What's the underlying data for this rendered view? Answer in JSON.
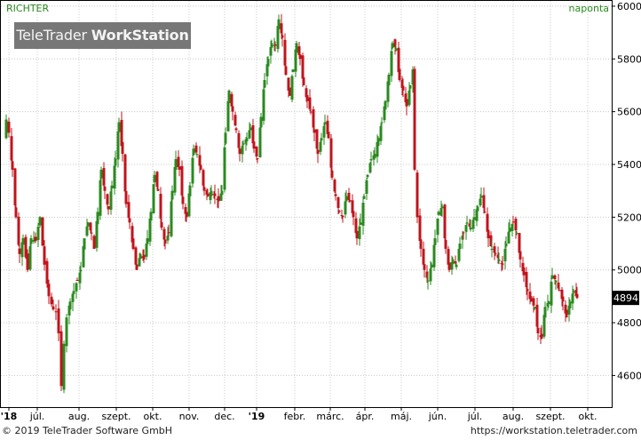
{
  "header": {
    "symbol": "RICHTER",
    "period": "naponta"
  },
  "watermark": {
    "brand": "TeleTrader",
    "product": "WorkStation"
  },
  "footer": {
    "copyright": "© 2019 TeleTrader Software GmbH",
    "url": "https://workstation.teletrader.com"
  },
  "chart_data": {
    "type": "candlestick",
    "series_name": "RICHTER",
    "interval": "naponta",
    "last_value": 4894,
    "ylim": [
      4480,
      6020
    ],
    "y_ticks": [
      4600,
      4800,
      5000,
      5200,
      5400,
      5600,
      5800,
      6000
    ],
    "x_ticks": [
      "'18",
      "júl.",
      "aug.",
      "szept.",
      "okt.",
      "nov.",
      "dec.",
      "'19",
      "febr.",
      "márc.",
      "ápr.",
      "máj.",
      "jún.",
      "júl.",
      "aug.",
      "szept.",
      "okt."
    ],
    "grid": true,
    "colors": {
      "up": "#2a8a1f",
      "down": "#c0141c",
      "grid": "#c8c8c8",
      "axis": "#000000",
      "last_badge": "#000000"
    },
    "price_path": [
      [
        0,
        5500
      ],
      [
        2,
        5570
      ],
      [
        5,
        5520
      ],
      [
        9,
        5380
      ],
      [
        13,
        5200
      ],
      [
        17,
        5060
      ],
      [
        21,
        5120
      ],
      [
        26,
        5000
      ],
      [
        30,
        5120
      ],
      [
        35,
        5110
      ],
      [
        40,
        5200
      ],
      [
        45,
        5020
      ],
      [
        50,
        4900
      ],
      [
        55,
        4850
      ],
      [
        58,
        4840
      ],
      [
        61,
        4760
      ],
      [
        64,
        4560
      ],
      [
        67,
        4720
      ],
      [
        70,
        4820
      ],
      [
        74,
        4880
      ],
      [
        78,
        4920
      ],
      [
        82,
        4960
      ],
      [
        86,
        5000
      ],
      [
        90,
        5120
      ],
      [
        94,
        5180
      ],
      [
        98,
        5140
      ],
      [
        101,
        5080
      ],
      [
        105,
        5220
      ],
      [
        109,
        5380
      ],
      [
        113,
        5300
      ],
      [
        117,
        5230
      ],
      [
        121,
        5320
      ],
      [
        125,
        5420
      ],
      [
        129,
        5560
      ],
      [
        133,
        5440
      ],
      [
        137,
        5250
      ],
      [
        141,
        5180
      ],
      [
        145,
        5080
      ],
      [
        149,
        5000
      ],
      [
        153,
        5060
      ],
      [
        157,
        5040
      ],
      [
        161,
        5120
      ],
      [
        165,
        5220
      ],
      [
        169,
        5360
      ],
      [
        173,
        5300
      ],
      [
        177,
        5160
      ],
      [
        181,
        5100
      ],
      [
        185,
        5140
      ],
      [
        189,
        5300
      ],
      [
        193,
        5420
      ],
      [
        197,
        5380
      ],
      [
        201,
        5250
      ],
      [
        205,
        5200
      ],
      [
        209,
        5320
      ],
      [
        213,
        5460
      ],
      [
        217,
        5440
      ],
      [
        221,
        5380
      ],
      [
        225,
        5300
      ],
      [
        229,
        5280
      ],
      [
        233,
        5300
      ],
      [
        237,
        5280
      ],
      [
        241,
        5260
      ],
      [
        245,
        5300
      ],
      [
        249,
        5520
      ],
      [
        253,
        5680
      ],
      [
        257,
        5600
      ],
      [
        261,
        5530
      ],
      [
        265,
        5440
      ],
      [
        269,
        5480
      ],
      [
        273,
        5500
      ],
      [
        277,
        5540
      ],
      [
        281,
        5460
      ],
      [
        285,
        5420
      ],
      [
        289,
        5580
      ],
      [
        293,
        5720
      ],
      [
        297,
        5800
      ],
      [
        301,
        5860
      ],
      [
        305,
        5850
      ],
      [
        309,
        5950
      ],
      [
        313,
        5880
      ],
      [
        317,
        5740
      ],
      [
        321,
        5660
      ],
      [
        325,
        5760
      ],
      [
        329,
        5860
      ],
      [
        333,
        5800
      ],
      [
        337,
        5700
      ],
      [
        341,
        5640
      ],
      [
        345,
        5600
      ],
      [
        349,
        5520
      ],
      [
        353,
        5440
      ],
      [
        357,
        5500
      ],
      [
        361,
        5560
      ],
      [
        365,
        5500
      ],
      [
        369,
        5350
      ],
      [
        373,
        5280
      ],
      [
        377,
        5220
      ],
      [
        381,
        5200
      ],
      [
        385,
        5280
      ],
      [
        389,
        5260
      ],
      [
        393,
        5200
      ],
      [
        397,
        5120
      ],
      [
        401,
        5180
      ],
      [
        405,
        5280
      ],
      [
        409,
        5360
      ],
      [
        413,
        5420
      ],
      [
        417,
        5440
      ],
      [
        421,
        5500
      ],
      [
        425,
        5560
      ],
      [
        429,
        5640
      ],
      [
        433,
        5740
      ],
      [
        437,
        5860
      ],
      [
        441,
        5840
      ],
      [
        445,
        5720
      ],
      [
        449,
        5680
      ],
      [
        453,
        5620
      ],
      [
        457,
        5700
      ],
      [
        460,
        5760
      ],
      [
        462,
        5380
      ],
      [
        465,
        5200
      ],
      [
        469,
        5080
      ],
      [
        473,
        5000
      ],
      [
        477,
        4960
      ],
      [
        481,
        5020
      ],
      [
        485,
        5120
      ],
      [
        489,
        5220
      ],
      [
        493,
        5240
      ],
      [
        497,
        5080
      ],
      [
        501,
        5000
      ],
      [
        505,
        5040
      ],
      [
        509,
        5020
      ],
      [
        513,
        5100
      ],
      [
        517,
        5140
      ],
      [
        521,
        5180
      ],
      [
        525,
        5160
      ],
      [
        529,
        5200
      ],
      [
        533,
        5240
      ],
      [
        537,
        5280
      ],
      [
        541,
        5220
      ],
      [
        545,
        5120
      ],
      [
        549,
        5080
      ],
      [
        553,
        5060
      ],
      [
        557,
        5040
      ],
      [
        561,
        5020
      ],
      [
        565,
        5100
      ],
      [
        569,
        5160
      ],
      [
        573,
        5180
      ],
      [
        577,
        5140
      ],
      [
        581,
        5040
      ],
      [
        585,
        4980
      ],
      [
        589,
        4920
      ],
      [
        593,
        4880
      ],
      [
        597,
        4860
      ],
      [
        601,
        4760
      ],
      [
        605,
        4740
      ],
      [
        609,
        4860
      ],
      [
        613,
        4880
      ],
      [
        617,
        4980
      ],
      [
        621,
        4960
      ],
      [
        625,
        4920
      ],
      [
        629,
        4880
      ],
      [
        633,
        4820
      ],
      [
        637,
        4880
      ],
      [
        641,
        4920
      ],
      [
        645,
        4894
      ]
    ]
  }
}
